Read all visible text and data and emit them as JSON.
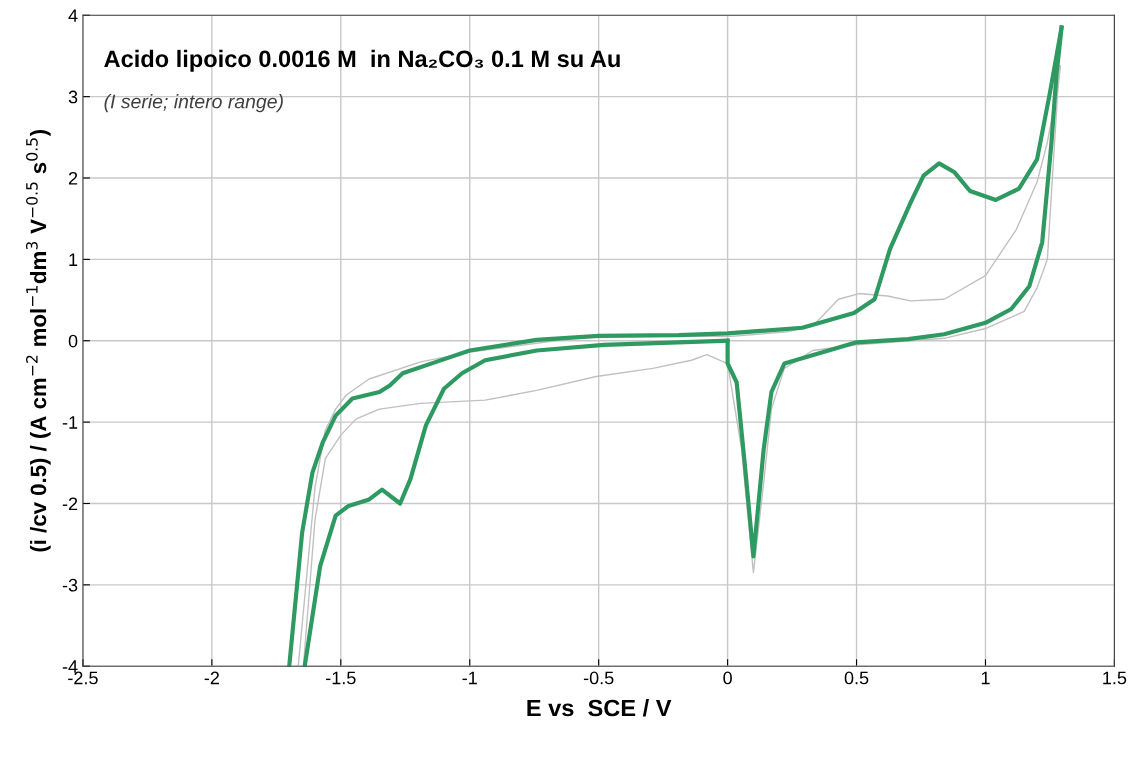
{
  "chart_data": {
    "type": "line",
    "title": "Acido lipoico 0.0016 M  in Na₂CO₃ 0.1 M su Au",
    "subtitle": "(I serie; intero range)",
    "xlabel": "E vs  SCE / V",
    "ylabel": "(i /cv 0.5) / (A cm$^{−2}$ mol$^{−1}$dm$^{3}$ V$^{−0.5}$ s$^{0.5}$)",
    "xlim": [
      -2.5,
      1.5
    ],
    "xticks": [
      -2.5,
      -2,
      -1.5,
      -1,
      -0.5,
      0,
      0.5,
      1,
      1.5
    ],
    "ylim": [
      -4,
      4
    ],
    "yticks": [
      -4,
      -3,
      -2,
      -1,
      0,
      1,
      2,
      3,
      4
    ],
    "grid": true,
    "marker": "none",
    "line_style": "solid",
    "series": [
      {
        "color": "#c0c0c0",
        "x": [
          -1.645,
          -1.6,
          -1.56,
          -1.5,
          -1.44,
          -1.35,
          -1.19,
          -0.94,
          -0.74,
          -0.51,
          -0.29,
          -0.14,
          -0.08,
          0.0,
          0.054,
          0.1,
          0.14,
          0.17,
          0.22,
          0.33,
          0.5,
          0.84,
          1.0,
          1.15,
          1.2,
          1.24,
          1.26,
          1.28,
          1.29
        ],
        "values": [
          -4.0,
          -2.2,
          -1.45,
          -1.16,
          -0.96,
          -0.84,
          -0.77,
          -0.73,
          -0.61,
          -0.44,
          -0.34,
          -0.24,
          -0.17,
          -0.28,
          -1.33,
          -2.85,
          -1.74,
          -0.84,
          -0.34,
          -0.12,
          -0.05,
          0.03,
          0.15,
          0.36,
          0.65,
          1.0,
          2.03,
          3.05,
          3.38
        ]
      },
      {
        "color": "#c0c0c0",
        "x": [
          1.29,
          1.276,
          1.24,
          1.2,
          1.12,
          1.0,
          0.84,
          0.71,
          0.62,
          0.51,
          0.43,
          0.33,
          0.23,
          0,
          -0.5,
          -1.0,
          -1.19,
          -1.39,
          -1.48,
          -1.52,
          -1.56,
          -1.6,
          -1.665
        ],
        "values": [
          3.38,
          3.05,
          2.44,
          1.95,
          1.37,
          0.8,
          0.51,
          0.49,
          0.55,
          0.58,
          0.51,
          0.18,
          0.11,
          0.05,
          0.07,
          -0.14,
          -0.26,
          -0.47,
          -0.67,
          -0.84,
          -1.1,
          -1.8,
          -4.0
        ]
      },
      {
        "color": "#2e9a62",
        "x": [
          0,
          0,
          0.035,
          0.067,
          0.1,
          0.14,
          0.17,
          0.22,
          0.5,
          0.7,
          0.84,
          1.0,
          1.1,
          1.17,
          1.22,
          1.256,
          1.275,
          1.295
        ],
        "values": [
          0.0,
          -0.28,
          -0.51,
          -1.53,
          -2.65,
          -1.33,
          -0.63,
          -0.28,
          -0.02,
          0.02,
          0.08,
          0.22,
          0.39,
          0.67,
          1.21,
          2.44,
          3.26,
          3.85
        ]
      },
      {
        "color": "#2e9a62",
        "x": [
          1.295,
          1.25,
          1.2,
          1.13,
          1.04,
          0.94,
          0.88,
          0.82,
          0.76,
          0.71,
          0.63,
          0.57,
          0.49,
          0.29,
          0,
          -0.19,
          -0.5,
          -0.74,
          -1.0,
          -1.13,
          -1.26,
          -1.31,
          -1.35,
          -1.455,
          -1.52,
          -1.57,
          -1.61,
          -1.65,
          -1.7
        ],
        "values": [
          3.85,
          3.05,
          2.23,
          1.87,
          1.73,
          1.84,
          2.07,
          2.18,
          2.03,
          1.7,
          1.13,
          0.51,
          0.34,
          0.16,
          0.09,
          0.07,
          0.06,
          0.01,
          -0.12,
          -0.26,
          -0.4,
          -0.55,
          -0.63,
          -0.71,
          -0.92,
          -1.25,
          -1.62,
          -2.36,
          -4.0
        ]
      },
      {
        "color": "#2e9a62",
        "x": [
          -1.64,
          -1.58,
          -1.52,
          -1.47,
          -1.39,
          -1.34,
          -1.27,
          -1.23,
          -1.17,
          -1.1,
          -1.03,
          -0.94,
          -0.74,
          -0.48,
          0
        ],
        "values": [
          -4.0,
          -2.77,
          -2.15,
          -2.03,
          -1.95,
          -1.83,
          -2.0,
          -1.7,
          -1.04,
          -0.59,
          -0.4,
          -0.24,
          -0.12,
          -0.05,
          0.0
        ]
      }
    ]
  }
}
